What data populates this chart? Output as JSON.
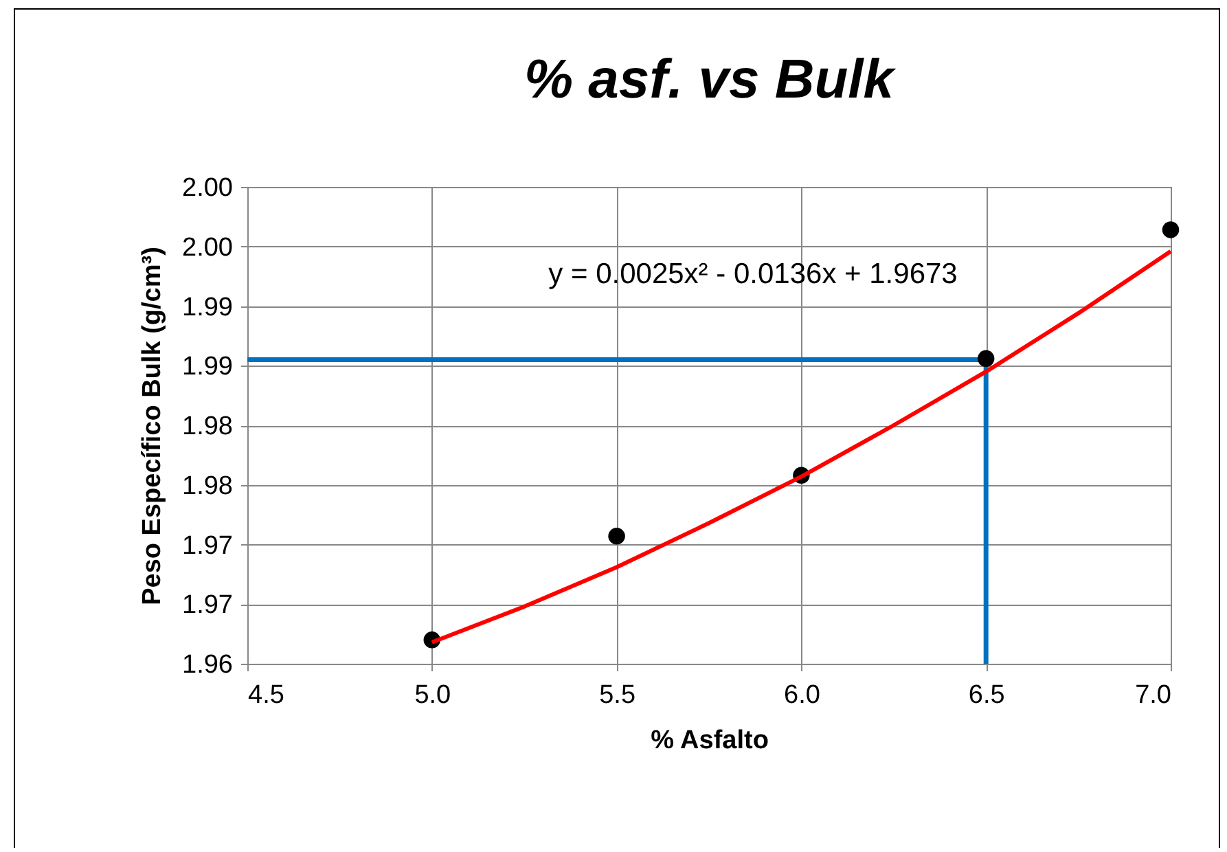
{
  "chart_data": {
    "type": "scatter",
    "title": "% asf. vs Bulk",
    "xlabel": "% Asfalto",
    "ylabel": "Peso Específico Bulk (g/cm³)",
    "xlim": [
      4.5,
      7.0
    ],
    "xticks": [
      4.5,
      {
        "value": 5,
        "label": "5.0"
      },
      5.5,
      {
        "value": 6,
        "label": "6.0"
      },
      6.5,
      {
        "value": 7,
        "label": "7.0"
      }
    ],
    "ylim": [
      1.96,
      2.0
    ],
    "yticks": [
      1.96,
      {
        "value": 1.965,
        "label": "1.97"
      },
      1.97,
      {
        "value": 1.975,
        "label": "1.98"
      },
      1.98,
      {
        "value": 1.985,
        "label": "1.99"
      },
      1.99,
      {
        "value": 1.995,
        "label": "2.00"
      },
      {
        "value": 2.0,
        "label": "2.00"
      }
    ],
    "grid": true,
    "marker": "circle",
    "series": [
      {
        "type": "scatter",
        "color": "#000000",
        "x": [
          5.0,
          5.5,
          6.0,
          6.5,
          7.0
        ],
        "values": [
          1.962,
          1.9707,
          1.9758,
          1.9856,
          1.9964
        ]
      },
      {
        "type": "line",
        "color": "#ff0000",
        "marker": "none",
        "x": [
          5.0,
          5.25,
          5.5,
          5.75,
          6.0,
          6.25,
          6.5,
          6.75,
          7.0
        ],
        "values": [
          1.9618,
          1.9648,
          1.9681,
          1.9718,
          1.9757,
          1.98,
          1.9845,
          1.9894,
          1.9946
        ]
      }
    ],
    "ref_lines": [
      {
        "axis": "y",
        "value": 1.9855,
        "color": "#0070c0"
      },
      {
        "axis": "x",
        "value": 6.5,
        "color": "#0070c0"
      }
    ],
    "annotations": [
      "y = 0.0025x² - 0.0136x + 1.9673"
    ]
  }
}
